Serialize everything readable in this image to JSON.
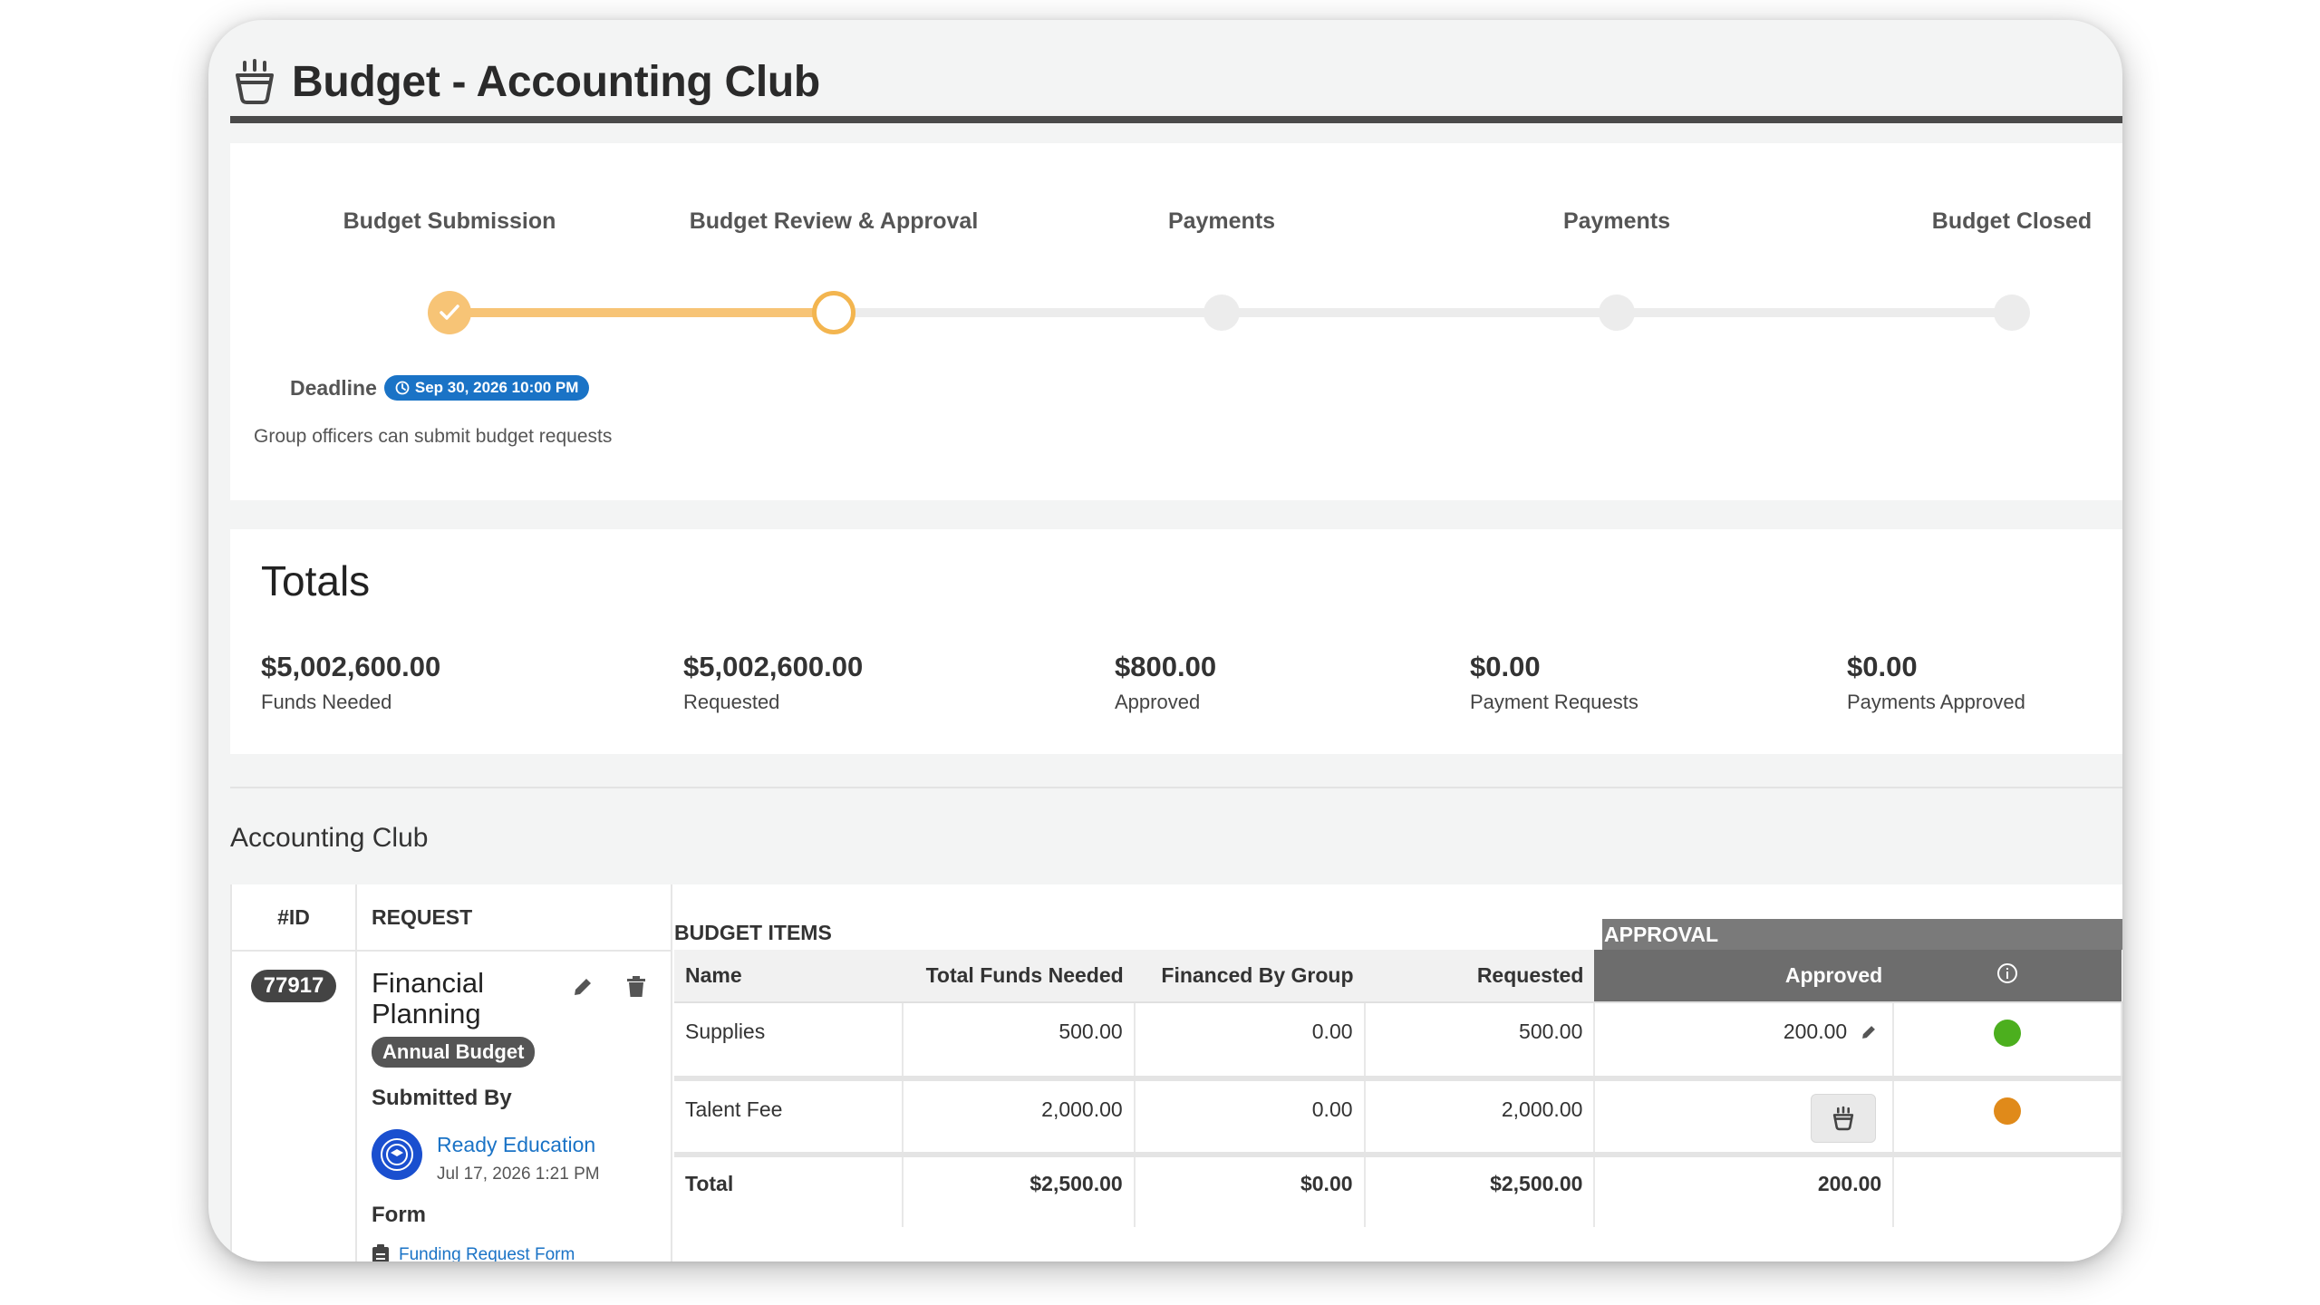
{
  "header": {
    "title": "Budget - Accounting Club"
  },
  "stepper": {
    "steps": [
      {
        "label": "Budget Submission",
        "state": "done"
      },
      {
        "label": "Budget Review & Approval",
        "state": "current"
      },
      {
        "label": "Payments",
        "state": "pending"
      },
      {
        "label": "Payments",
        "state": "pending"
      },
      {
        "label": "Budget Closed",
        "state": "pending"
      }
    ],
    "deadline_label": "Deadline",
    "deadline_value": "Sep 30, 2026 10:00 PM",
    "description": "Group officers can submit budget requests"
  },
  "totals": {
    "title": "Totals",
    "items": [
      {
        "amount": "$5,002,600.00",
        "label": "Funds Needed"
      },
      {
        "amount": "$5,002,600.00",
        "label": "Requested"
      },
      {
        "amount": "$800.00",
        "label": "Approved"
      },
      {
        "amount": "$0.00",
        "label": "Payment Requests"
      },
      {
        "amount": "$0.00",
        "label": "Payments Approved"
      }
    ]
  },
  "section": {
    "title": "Accounting Club"
  },
  "table": {
    "id_header": "#ID",
    "request_header": "REQUEST",
    "budget_items_header": "BUDGET ITEMS",
    "approval_header": "APPROVAL",
    "columns": {
      "name": "Name",
      "total_funds_needed": "Total Funds Needed",
      "financed_by_group": "Financed By Group",
      "requested": "Requested",
      "approved": "Approved"
    },
    "request": {
      "id": "77917",
      "name": "Financial Planning",
      "type_badge": "Annual Budget",
      "submitted_by_label": "Submitted By",
      "submitter_name": "Ready Education",
      "submitted_date": "Jul 17, 2026 1:21 PM",
      "form_label": "Form",
      "form_link": "Funding Request Form"
    },
    "items": [
      {
        "name": "Supplies",
        "total_funds_needed": "500.00",
        "financed_by_group": "0.00",
        "requested": "500.00",
        "approved": "200.00",
        "status_color": "#4caf1e"
      },
      {
        "name": "Talent Fee",
        "total_funds_needed": "2,000.00",
        "financed_by_group": "0.00",
        "requested": "2,000.00",
        "approved": "",
        "status_color": "#e08a1a"
      }
    ],
    "total_row": {
      "label": "Total",
      "total_funds_needed": "$2,500.00",
      "financed_by_group": "$0.00",
      "requested": "$2,500.00",
      "approved": "200.00"
    }
  },
  "icons": {
    "title": "basket-icon",
    "done_step": "check-icon",
    "deadline": "clock-icon",
    "edit": "pencil-icon",
    "delete": "trash-icon",
    "info": "info-icon",
    "form": "clipboard-icon",
    "approve": "basket-icon"
  }
}
